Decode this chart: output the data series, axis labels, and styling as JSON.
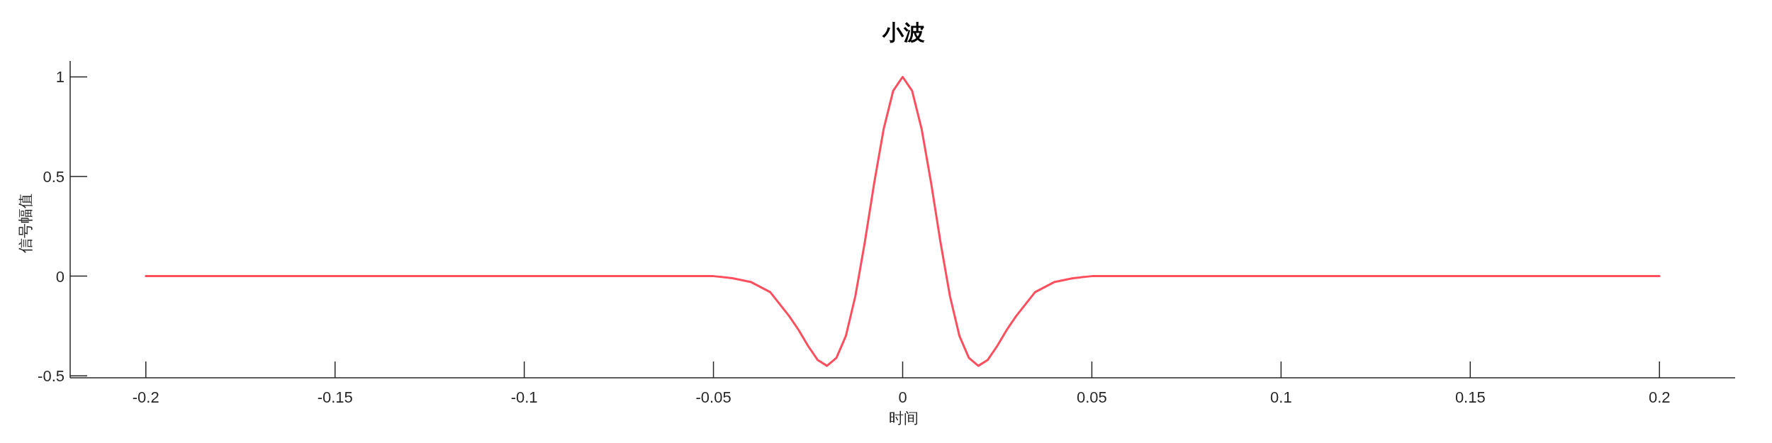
{
  "chart_data": {
    "type": "line",
    "title": "小波",
    "xlabel": "时间",
    "ylabel": "信号幅值",
    "x": [
      -0.2,
      -0.1,
      -0.06,
      -0.05,
      -0.045,
      -0.04,
      -0.035,
      -0.03,
      -0.0275,
      -0.025,
      -0.0225,
      -0.02,
      -0.0175,
      -0.015,
      -0.0125,
      -0.01,
      -0.0075,
      -0.005,
      -0.0025,
      0,
      0.0025,
      0.005,
      0.0075,
      0.01,
      0.0125,
      0.015,
      0.0175,
      0.02,
      0.0225,
      0.025,
      0.0275,
      0.03,
      0.035,
      0.04,
      0.045,
      0.05,
      0.06,
      0.1,
      0.2
    ],
    "series": [
      {
        "color": "#ff4f5e",
        "values": [
          0,
          0,
          0,
          0,
          -0.01,
          -0.03,
          -0.08,
          -0.2,
          -0.27,
          -0.35,
          -0.42,
          -0.45,
          -0.41,
          -0.3,
          -0.1,
          0.17,
          0.47,
          0.74,
          0.93,
          1,
          0.93,
          0.74,
          0.47,
          0.17,
          -0.1,
          -0.3,
          -0.41,
          -0.45,
          -0.42,
          -0.35,
          -0.27,
          -0.2,
          -0.08,
          -0.03,
          -0.01,
          0,
          0,
          0,
          0
        ]
      }
    ],
    "xlim": [
      -0.22,
      0.22
    ],
    "ylim": [
      -0.51,
      1.08
    ],
    "xticks": [
      -0.2,
      -0.15,
      -0.1,
      -0.05,
      0,
      0.05,
      0.1,
      0.15,
      0.2
    ],
    "yticks": [
      -0.5,
      0,
      0.5,
      1
    ],
    "grid": false,
    "legend": false,
    "marker": "none",
    "line_style": "solid"
  }
}
